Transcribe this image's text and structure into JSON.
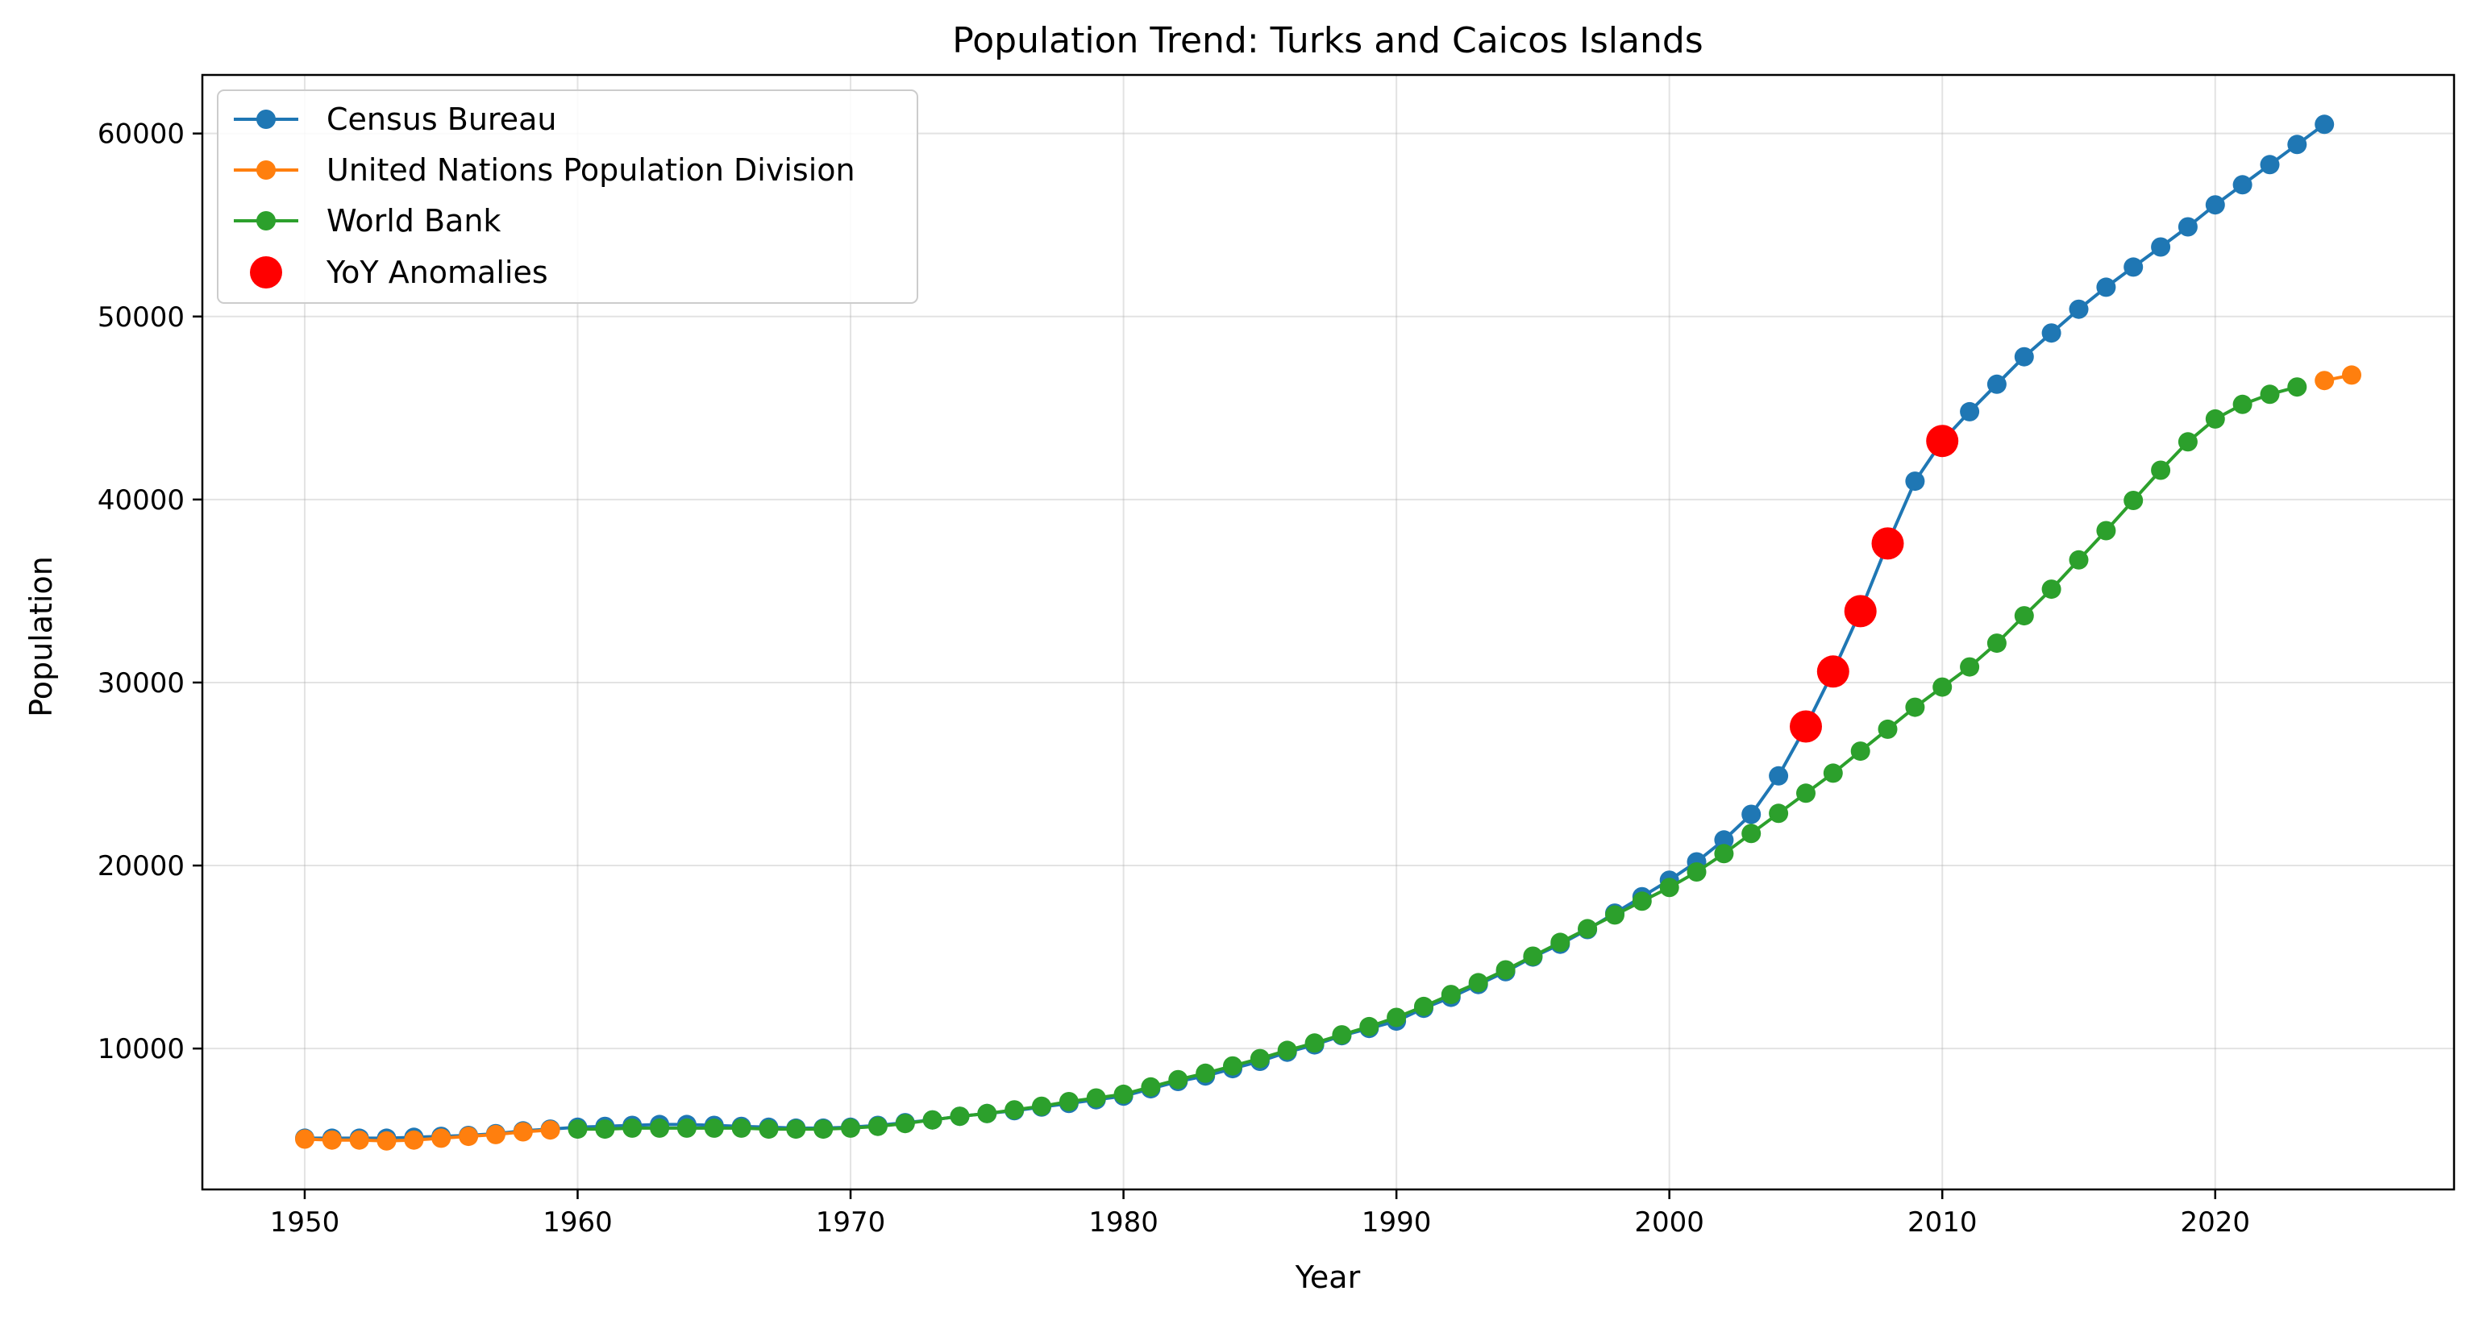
{
  "chart_data": {
    "type": "line",
    "title": "Population Trend: Turks and Caicos Islands",
    "xlabel": "Year",
    "ylabel": "Population",
    "xlim": [
      1946.25,
      2028.75
    ],
    "ylim": [
      2300,
      63200
    ],
    "xticks": [
      "1950",
      "1960",
      "1970",
      "1980",
      "1990",
      "2000",
      "2010",
      "2020"
    ],
    "yticks": [
      "10000",
      "20000",
      "30000",
      "40000",
      "50000",
      "60000"
    ],
    "grid": true,
    "legend_position": "top-left",
    "series": [
      {
        "name": "Census Bureau",
        "color": "#1f77b4",
        "marker": "circle",
        "x": [
          1950,
          1951,
          1952,
          1953,
          1954,
          1955,
          1956,
          1957,
          1958,
          1959,
          1960,
          1961,
          1962,
          1963,
          1964,
          1965,
          1966,
          1967,
          1968,
          1969,
          1970,
          1971,
          1972,
          1973,
          1974,
          1975,
          1976,
          1977,
          1978,
          1979,
          1980,
          1981,
          1982,
          1983,
          1984,
          1985,
          1986,
          1987,
          1988,
          1989,
          1990,
          1991,
          1992,
          1993,
          1994,
          1995,
          1996,
          1997,
          1998,
          1999,
          2000,
          2001,
          2002,
          2003,
          2004,
          2005,
          2006,
          2007,
          2008,
          2009,
          2010,
          2011,
          2012,
          2013,
          2014,
          2015,
          2016,
          2017,
          2018,
          2019,
          2020,
          2021,
          2022,
          2023,
          2024
        ],
        "y": [
          5100,
          5100,
          5100,
          5100,
          5150,
          5200,
          5250,
          5350,
          5500,
          5600,
          5700,
          5750,
          5800,
          5850,
          5850,
          5800,
          5750,
          5700,
          5650,
          5650,
          5700,
          5800,
          5950,
          6100,
          6300,
          6450,
          6600,
          6800,
          7000,
          7200,
          7400,
          7800,
          8200,
          8500,
          8900,
          9300,
          9800,
          10200,
          10700,
          11100,
          11500,
          12200,
          12800,
          13500,
          14200,
          15000,
          15700,
          16500,
          17400,
          18300,
          19200,
          20200,
          21400,
          22800,
          24900,
          27600,
          30600,
          33900,
          37600,
          41000,
          43200,
          44800,
          46300,
          47800,
          49100,
          50400,
          51600,
          52700,
          53800,
          54900,
          56100,
          57200,
          58300,
          59400,
          60500
        ]
      },
      {
        "name": "United Nations Population Division",
        "color": "#ff7f0e",
        "marker": "circle",
        "x": [
          1950,
          1951,
          1952,
          1953,
          1954,
          1955,
          1956,
          1957,
          1958,
          1959,
          2024,
          2025
        ],
        "y": [
          5050,
          5000,
          5000,
          4950,
          5000,
          5100,
          5200,
          5300,
          5450,
          5550,
          46500,
          46800
        ]
      },
      {
        "name": "World Bank",
        "color": "#2ca02c",
        "marker": "circle",
        "x": [
          1960,
          1961,
          1962,
          1963,
          1964,
          1965,
          1966,
          1967,
          1968,
          1969,
          1970,
          1971,
          1972,
          1973,
          1974,
          1975,
          1976,
          1977,
          1978,
          1979,
          1980,
          1981,
          1982,
          1983,
          1984,
          1985,
          1986,
          1987,
          1988,
          1989,
          1990,
          1991,
          1992,
          1993,
          1994,
          1995,
          1996,
          1997,
          1998,
          1999,
          2000,
          2001,
          2002,
          2003,
          2004,
          2005,
          2006,
          2007,
          2008,
          2009,
          2010,
          2011,
          2012,
          2013,
          2014,
          2015,
          2016,
          2017,
          2018,
          2019,
          2020,
          2021,
          2022,
          2023
        ],
        "y": [
          5600,
          5600,
          5650,
          5650,
          5650,
          5650,
          5650,
          5600,
          5600,
          5600,
          5650,
          5750,
          5900,
          6100,
          6300,
          6450,
          6650,
          6850,
          7100,
          7300,
          7500,
          7900,
          8300,
          8650,
          9050,
          9450,
          9900,
          10300,
          10750,
          11200,
          11700,
          12300,
          12950,
          13600,
          14300,
          15050,
          15800,
          16550,
          17300,
          18050,
          18800,
          19650,
          20650,
          21750,
          22850,
          23950,
          25050,
          26250,
          27450,
          28650,
          29750,
          30850,
          32150,
          33650,
          35100,
          36700,
          38300,
          39950,
          41600,
          43150,
          44400,
          45200,
          45750,
          46150
        ]
      },
      {
        "name": "YoY Anomalies",
        "color": "#ff0000",
        "marker": "circle-large",
        "x": [
          2005,
          2006,
          2007,
          2008,
          2010
        ],
        "y": [
          27600,
          30600,
          33900,
          37600,
          43200
        ]
      }
    ]
  }
}
